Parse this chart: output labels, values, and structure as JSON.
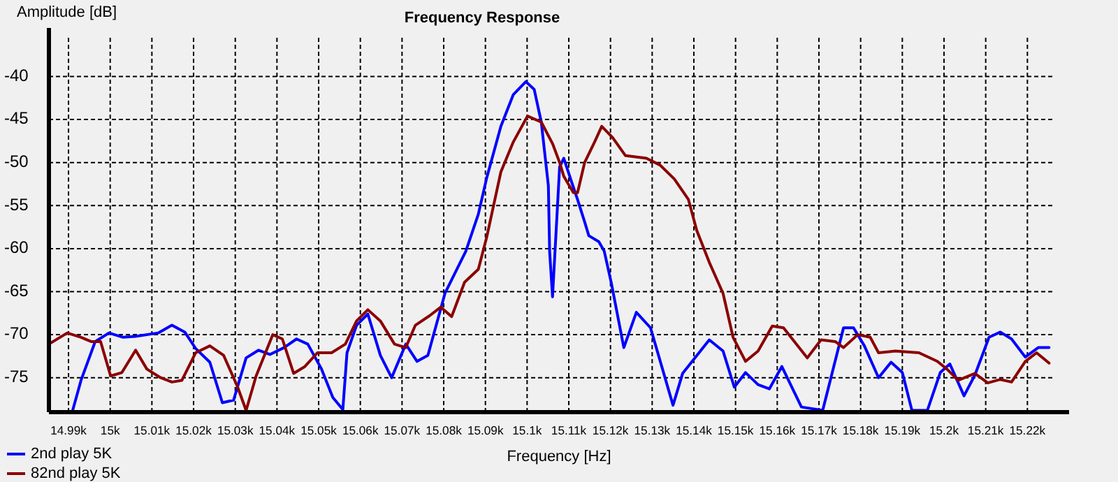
{
  "chart_data": {
    "type": "line",
    "title": "Frequency Response",
    "xlabel": "Frequency [Hz]",
    "ylabel": "Amplitude [dB]",
    "xlim": [
      14985.3,
      15230
    ],
    "ylim": [
      -79,
      -35.5
    ],
    "xticks": [
      {
        "value": 14990,
        "label": "14.99k"
      },
      {
        "value": 15000,
        "label": "15k"
      },
      {
        "value": 15010,
        "label": "15.01k"
      },
      {
        "value": 15020,
        "label": "15.02k"
      },
      {
        "value": 15030,
        "label": "15.03k"
      },
      {
        "value": 15040,
        "label": "15.04k"
      },
      {
        "value": 15050,
        "label": "15.05k"
      },
      {
        "value": 15060,
        "label": "15.06k"
      },
      {
        "value": 15070,
        "label": "15.07k"
      },
      {
        "value": 15080,
        "label": "15.08k"
      },
      {
        "value": 15090,
        "label": "15.09k"
      },
      {
        "value": 15100,
        "label": "15.1k"
      },
      {
        "value": 15110,
        "label": "15.11k"
      },
      {
        "value": 15120,
        "label": "15.12k"
      },
      {
        "value": 15130,
        "label": "15.13k"
      },
      {
        "value": 15140,
        "label": "15.14k"
      },
      {
        "value": 15150,
        "label": "15.15k"
      },
      {
        "value": 15160,
        "label": "15.16k"
      },
      {
        "value": 15170,
        "label": "15.17k"
      },
      {
        "value": 15180,
        "label": "15.18k"
      },
      {
        "value": 15190,
        "label": "15.19k"
      },
      {
        "value": 15200,
        "label": "15.2k"
      },
      {
        "value": 15210,
        "label": "15.21k"
      },
      {
        "value": 15220,
        "label": "15.22k"
      }
    ],
    "yticks": [
      -40,
      -45,
      -50,
      -55,
      -60,
      -65,
      -70,
      -75
    ],
    "grid": true,
    "legend": "bottom left",
    "marker": "none",
    "line_style": "solid",
    "series": [
      {
        "name": "2nd play 5K",
        "color": "#0000ff",
        "x": [
          14991,
          14993,
          14996.4,
          14999.7,
          15003.1,
          15006.1,
          15011.5,
          15014.8,
          15017.9,
          15020.5,
          15023.9,
          15026.9,
          15029.6,
          15032.6,
          15035.6,
          15038.3,
          15041.7,
          15044.7,
          15047.4,
          15050.7,
          15053.4,
          15055.8,
          15056.8,
          15059.1,
          15061.8,
          15064.8,
          15067.5,
          15070.9,
          15073.6,
          15076.2,
          15080.3,
          15085.3,
          15088.3,
          15090.3,
          15093.7,
          15096.7,
          15099.7,
          15101.7,
          15103.4,
          15105.1,
          15105.4,
          15106.1,
          15107.8,
          15108.8,
          15110.5,
          15112.1,
          15113.8,
          15114.8,
          15117.2,
          15118.5,
          15120.2,
          15123.2,
          15126.2,
          15129.6,
          15135,
          15137.3,
          15143.7,
          15147,
          15149.7,
          15152.4,
          15155.4,
          15158.1,
          15161.1,
          15165.8,
          15170.9,
          15175.9,
          15178.3,
          15180.9,
          15184.3,
          15187.3,
          15190,
          15192.3,
          15196,
          15199.1,
          15201.4,
          15204.8,
          15207.4,
          15210.8,
          15213.5,
          15216.2,
          15219.5,
          15222.6,
          15225.2
        ],
        "values": [
          -78.8,
          -75.3,
          -70.8,
          -69.8,
          -70.3,
          -70.2,
          -69.8,
          -68.9,
          -69.7,
          -71.6,
          -73.2,
          -77.9,
          -77.6,
          -72.7,
          -71.8,
          -72.3,
          -71.5,
          -70.5,
          -71.1,
          -74,
          -77.3,
          -78.7,
          -72.1,
          -68.9,
          -67.6,
          -72.4,
          -75,
          -71.1,
          -73.1,
          -72.4,
          -65.2,
          -60.3,
          -56,
          -51.8,
          -45.8,
          -42.1,
          -40.6,
          -41.5,
          -45.3,
          -52.7,
          -60.3,
          -65.6,
          -50.5,
          -49.5,
          -52,
          -54.3,
          -56.9,
          -58.5,
          -59.2,
          -60.3,
          -64,
          -71.5,
          -67.4,
          -69.2,
          -78.2,
          -74.5,
          -70.6,
          -71.9,
          -76.1,
          -74.4,
          -75.8,
          -76.3,
          -73.7,
          -78.4,
          -78.8,
          -69.2,
          -69.2,
          -71.3,
          -75,
          -73.2,
          -74.4,
          -78.8,
          -78.8,
          -74.4,
          -73.4,
          -77.1,
          -74.7,
          -70.3,
          -69.7,
          -70.5,
          -72.6,
          -71.5,
          -71.5
        ]
      },
      {
        "name": "82nd play 5K",
        "color": "#8b0000",
        "x": [
          14985.3,
          14989.7,
          14993,
          14995.4,
          14997.7,
          15000.1,
          15002.8,
          15006.1,
          15008.8,
          15012.1,
          15014.8,
          15017.2,
          15020.5,
          15023.9,
          15027.2,
          15030.5,
          15032.6,
          15035,
          15039,
          15041.3,
          15044,
          15046.7,
          15049.7,
          15053.1,
          15056.4,
          15059.1,
          15061.8,
          15064.8,
          15068.2,
          15070.9,
          15073.2,
          15076.6,
          15079.3,
          15081.9,
          15085,
          15088.3,
          15090.3,
          15093.7,
          15096.7,
          15100.1,
          15103.4,
          15106.1,
          15107.8,
          15108.8,
          15111.1,
          15112.1,
          15113.8,
          15116.2,
          15117.9,
          15120.5,
          15123.6,
          15128.6,
          15131.9,
          15135.3,
          15138.7,
          15140.7,
          15143.7,
          15147,
          15149.4,
          15152.4,
          15155.4,
          15158.8,
          15161.5,
          15167.2,
          15170.5,
          15173.9,
          15175.9,
          15179.3,
          15182.3,
          15184.3,
          15188.3,
          15194,
          15198.4,
          15200.7,
          15203.4,
          15207.4,
          15210.5,
          15213.5,
          15216.2,
          15219.5,
          15222.2,
          15225.2
        ],
        "values": [
          -71.1,
          -69.8,
          -70.3,
          -70.8,
          -70.8,
          -74.8,
          -74.4,
          -71.8,
          -74,
          -75,
          -75.5,
          -75.3,
          -72.1,
          -71.3,
          -72.4,
          -76,
          -78.8,
          -74.8,
          -70,
          -70.5,
          -74.5,
          -73.7,
          -72.1,
          -72.1,
          -71.1,
          -68.4,
          -67.1,
          -68.4,
          -71.1,
          -71.5,
          -68.9,
          -67.8,
          -66.8,
          -67.9,
          -63.9,
          -62.4,
          -58.7,
          -51.1,
          -47.6,
          -44.6,
          -45.3,
          -47.8,
          -50,
          -51.6,
          -53.5,
          -53.5,
          -50,
          -47.6,
          -45.8,
          -47.1,
          -49.2,
          -49.5,
          -50.3,
          -51.9,
          -54.3,
          -57.9,
          -61.6,
          -65.2,
          -70.3,
          -73.1,
          -71.9,
          -69,
          -69.2,
          -72.7,
          -70.6,
          -70.8,
          -71.5,
          -70,
          -70.3,
          -72.1,
          -71.9,
          -72.1,
          -73.1,
          -74,
          -75.3,
          -74.5,
          -75.6,
          -75.2,
          -75.5,
          -73.1,
          -72.1,
          -73.3
        ]
      }
    ]
  }
}
